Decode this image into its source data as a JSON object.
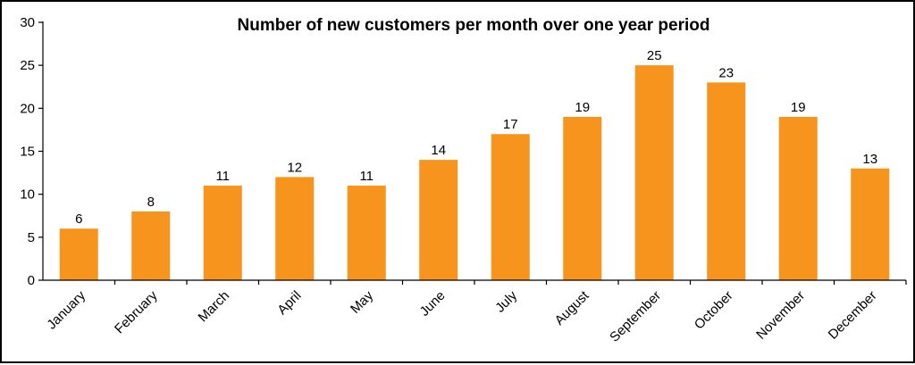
{
  "chart_data": {
    "type": "bar",
    "title": "Number of new customers per month over one year period",
    "xlabel": "",
    "ylabel": "",
    "categories": [
      "January",
      "February",
      "March",
      "April",
      "May",
      "June",
      "July",
      "August",
      "September",
      "October",
      "November",
      "December"
    ],
    "values": [
      6,
      8,
      11,
      12,
      11,
      14,
      17,
      19,
      25,
      23,
      19,
      13
    ],
    "ylim": [
      0,
      30
    ],
    "yticks": [
      0,
      5,
      10,
      15,
      20,
      25,
      30
    ],
    "grid": false,
    "legend": "none",
    "data_labels": true,
    "bar_color": "#F7941D",
    "axis_color": "#000000",
    "text_color": "#000000"
  }
}
